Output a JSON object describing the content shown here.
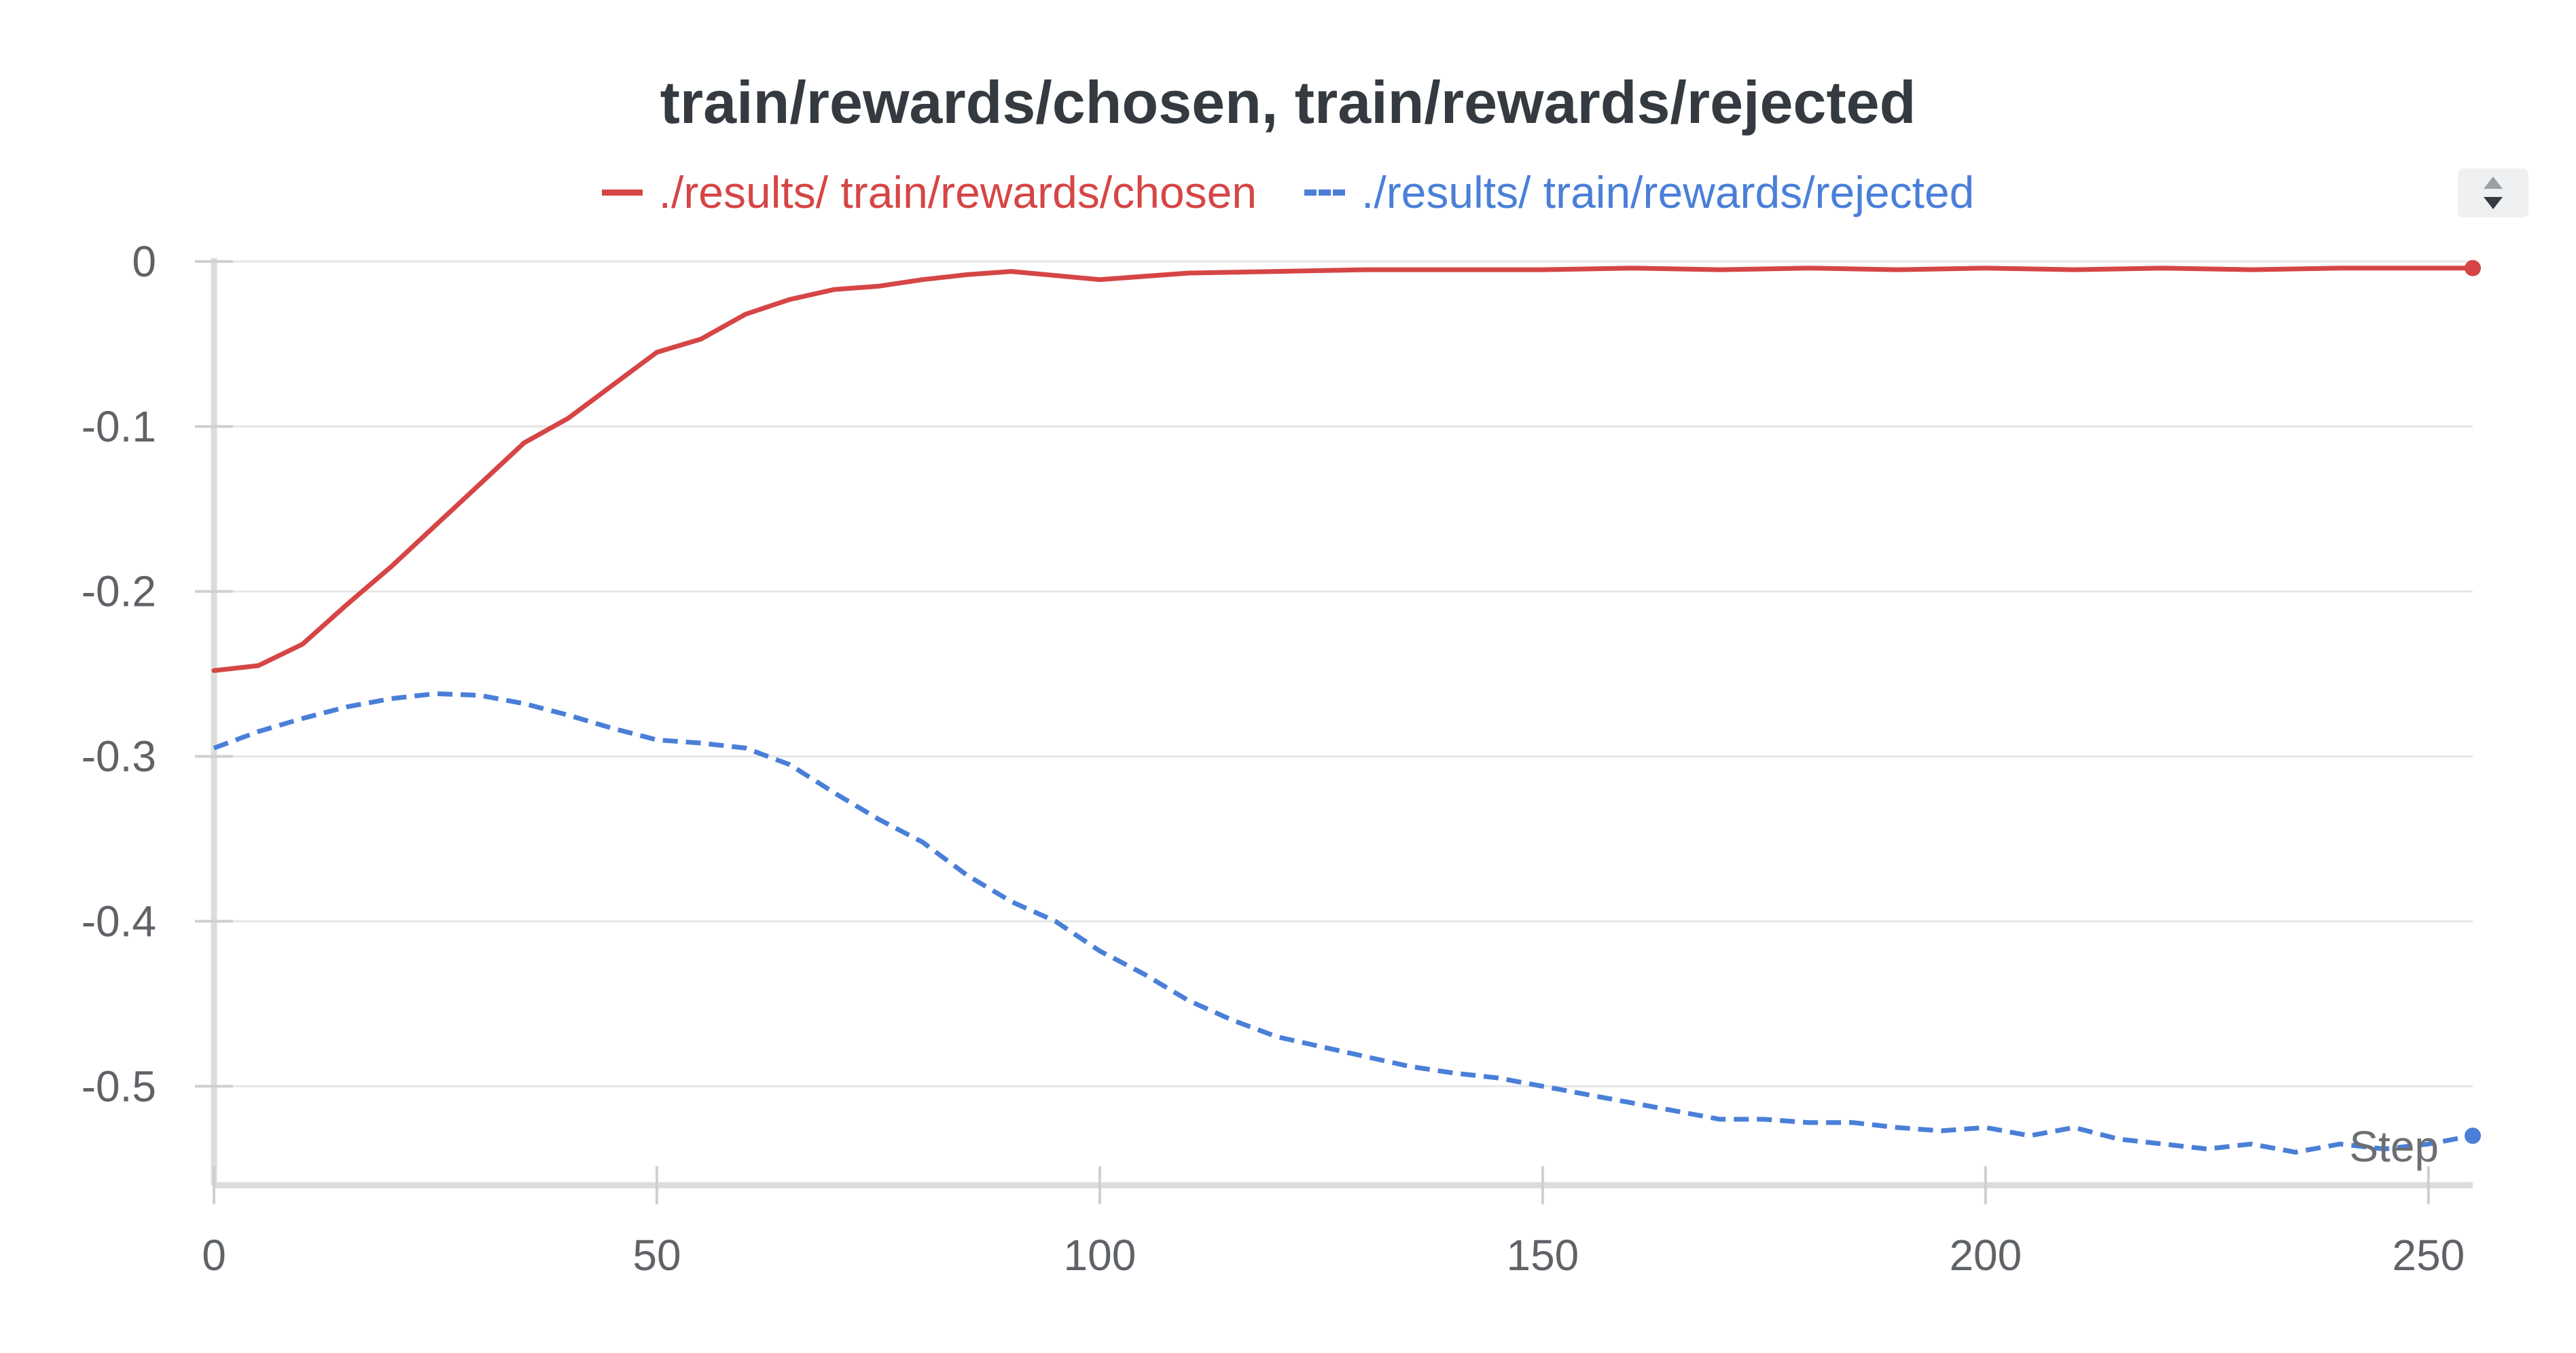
{
  "chart_data": {
    "type": "line",
    "title": "train/rewards/chosen, train/rewards/rejected",
    "xlabel": "Step",
    "ylabel": "",
    "xlim": [
      0,
      255
    ],
    "ylim": [
      -0.56,
      0.0
    ],
    "xticks": [
      0,
      50,
      100,
      150,
      200,
      250
    ],
    "xtick_labels": [
      "0",
      "50",
      "100",
      "150",
      "200",
      "250"
    ],
    "yticks": [
      0,
      -0.1,
      -0.2,
      -0.3,
      -0.4,
      -0.5
    ],
    "ytick_labels": [
      "0",
      "-0.1",
      "-0.2",
      "-0.3",
      "-0.4",
      "-0.5"
    ],
    "grid": true,
    "legend_position": "top-center",
    "series": [
      {
        "name": "./results/ train/rewards/chosen",
        "color": "#d64545",
        "style": "solid",
        "x": [
          0,
          5,
          10,
          15,
          20,
          25,
          30,
          35,
          40,
          45,
          50,
          55,
          60,
          65,
          70,
          75,
          80,
          85,
          90,
          100,
          110,
          120,
          130,
          140,
          150,
          160,
          170,
          180,
          190,
          200,
          210,
          220,
          230,
          240,
          250,
          255
        ],
        "y": [
          -0.248,
          -0.245,
          -0.232,
          -0.208,
          -0.185,
          -0.16,
          -0.135,
          -0.11,
          -0.095,
          -0.075,
          -0.055,
          -0.047,
          -0.032,
          -0.023,
          -0.017,
          -0.015,
          -0.011,
          -0.008,
          -0.006,
          -0.011,
          -0.007,
          -0.006,
          -0.005,
          -0.005,
          -0.005,
          -0.004,
          -0.005,
          -0.004,
          -0.005,
          -0.004,
          -0.005,
          -0.004,
          -0.005,
          -0.004,
          -0.004,
          -0.004
        ]
      },
      {
        "name": "./results/ train/rewards/rejected",
        "color": "#4a7fd8",
        "style": "dashed",
        "x": [
          0,
          5,
          10,
          15,
          20,
          25,
          30,
          35,
          40,
          45,
          50,
          55,
          60,
          65,
          70,
          75,
          80,
          85,
          90,
          95,
          100,
          105,
          110,
          115,
          120,
          125,
          130,
          135,
          140,
          145,
          150,
          155,
          160,
          165,
          170,
          175,
          180,
          185,
          190,
          195,
          200,
          205,
          210,
          215,
          220,
          225,
          230,
          235,
          240,
          245,
          250,
          255
        ],
        "y": [
          -0.295,
          -0.285,
          -0.277,
          -0.27,
          -0.265,
          -0.262,
          -0.263,
          -0.268,
          -0.275,
          -0.283,
          -0.29,
          -0.292,
          -0.295,
          -0.305,
          -0.322,
          -0.338,
          -0.352,
          -0.372,
          -0.388,
          -0.4,
          -0.418,
          -0.432,
          -0.448,
          -0.46,
          -0.47,
          -0.476,
          -0.482,
          -0.488,
          -0.492,
          -0.495,
          -0.5,
          -0.505,
          -0.51,
          -0.515,
          -0.52,
          -0.52,
          -0.522,
          -0.522,
          -0.525,
          -0.527,
          -0.525,
          -0.53,
          -0.525,
          -0.532,
          -0.535,
          -0.538,
          -0.535,
          -0.54,
          -0.535,
          -0.538,
          -0.535,
          -0.53
        ]
      }
    ]
  }
}
